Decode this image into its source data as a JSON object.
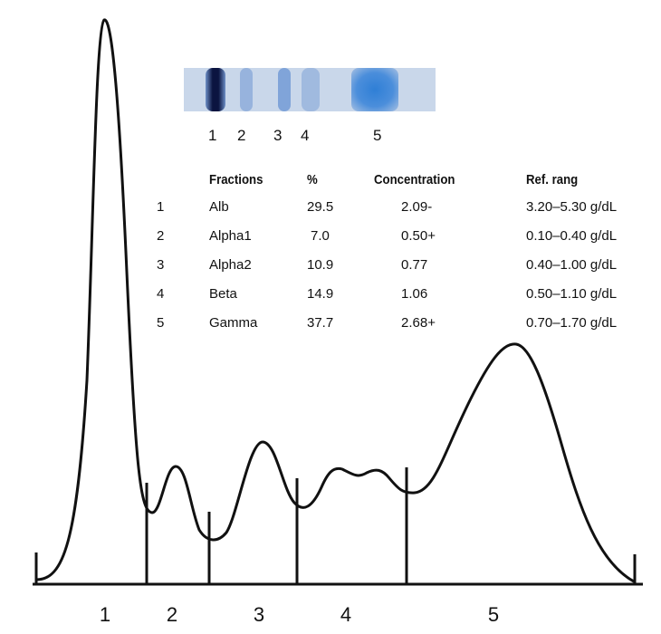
{
  "chart_data": {
    "type": "line",
    "description_kind": "serum protein electrophoresis densitometry",
    "curve_color": "#111111",
    "peak_labels": [
      "1",
      "2",
      "3",
      "4",
      "5"
    ],
    "strip_labels": [
      "1",
      "2",
      "3",
      "4",
      "5"
    ],
    "table": {
      "headers": [
        "Fractions",
        "%",
        "Concentration",
        "Ref. rang"
      ],
      "rows": [
        {
          "num": "1",
          "fraction": "Alb",
          "percent": "29.5",
          "concentration": "2.09-",
          "ref_range": "3.20–5.30 g/dL"
        },
        {
          "num": "2",
          "fraction": "Alpha1",
          "percent": "7.0",
          "concentration": "0.50+",
          "ref_range": "0.10–0.40 g/dL"
        },
        {
          "num": "3",
          "fraction": "Alpha2",
          "percent": "10.9",
          "concentration": "0.77",
          "ref_range": "0.40–1.00 g/dL"
        },
        {
          "num": "4",
          "fraction": "Beta",
          "percent": "14.9",
          "concentration": "1.06",
          "ref_range": "0.50–1.10 g/dL"
        },
        {
          "num": "5",
          "fraction": "Gamma",
          "percent": "37.7",
          "concentration": "2.68+",
          "ref_range": "0.70–1.70 g/dL"
        }
      ]
    },
    "band_colors": {
      "strip_bg": "#c9d7ea",
      "albumin": "#0b1440",
      "gamma": "#2f7fd6",
      "minor": "#7fa6d8"
    }
  }
}
